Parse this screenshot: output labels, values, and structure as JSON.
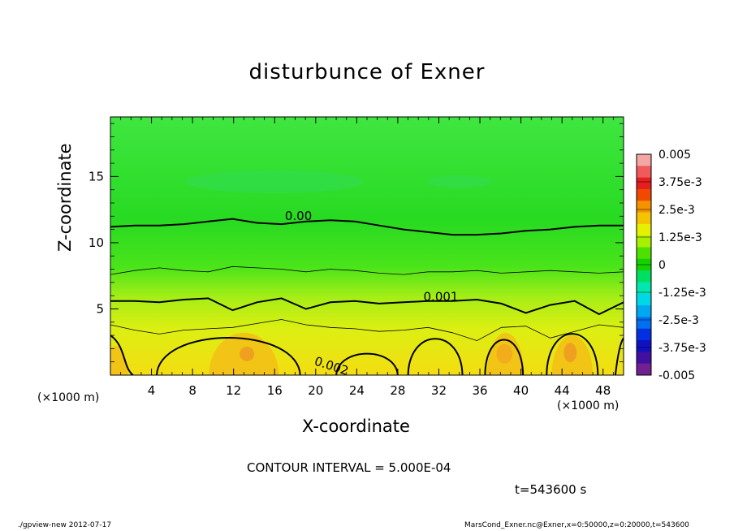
{
  "chart_data": {
    "type": "heatmap",
    "title": "disturbunce of Exner",
    "xlabel": "X-coordinate",
    "ylabel": "Z-coordinate",
    "x_unit_label_left": "(×1000 m)",
    "x_unit_label_right": "(×1000 m)",
    "xlim": [
      0,
      50
    ],
    "ylim": [
      0,
      19.5
    ],
    "x_ticks": [
      4,
      8,
      12,
      16,
      20,
      24,
      28,
      32,
      36,
      40,
      44,
      48
    ],
    "y_ticks": [
      5,
      10,
      15
    ],
    "contour_labels": [
      {
        "text": "0.00",
        "x": 17,
        "z": 11.7
      },
      {
        "text": "0.001",
        "x": 30.5,
        "z": 5.6
      },
      {
        "text": "0.002",
        "x": 19.8,
        "z": 0.8
      }
    ],
    "contour_levels": {
      "zero_line_z": [
        11.2,
        11.3,
        11.3,
        11.4,
        11.6,
        11.8,
        11.5,
        11.4,
        11.6,
        11.7,
        11.6,
        11.3,
        11.0,
        10.8,
        10.6,
        10.6,
        10.7,
        10.9,
        11.0,
        11.2,
        11.3,
        11.3
      ],
      "thin_0005_z": [
        7.6,
        7.9,
        8.1,
        7.9,
        7.8,
        8.2,
        8.1,
        8.0,
        7.8,
        8.0,
        7.9,
        7.7,
        7.6,
        7.8,
        7.8,
        7.9,
        7.7,
        7.8,
        7.9,
        7.8,
        7.7,
        7.8
      ],
      "thick_001_z": [
        5.6,
        5.6,
        5.5,
        5.7,
        5.8,
        4.9,
        5.5,
        5.8,
        5.0,
        5.5,
        5.6,
        5.4,
        5.5,
        5.6,
        5.6,
        5.7,
        5.4,
        4.7,
        5.3,
        5.6,
        4.6,
        5.5
      ],
      "thin_0015_z": [
        3.8,
        3.4,
        3.1,
        3.4,
        3.5,
        3.6,
        3.9,
        4.2,
        3.8,
        3.6,
        3.5,
        3.3,
        3.4,
        3.6,
        3.2,
        2.6,
        3.6,
        3.7,
        2.8,
        3.3,
        3.8,
        3.6
      ]
    },
    "colorbar": {
      "labels": [
        "0.005",
        "3.75e-3",
        "2.5e-3",
        "1.25e-3",
        "0",
        "-1.25e-3",
        "-2.5e-3",
        "-3.75e-3",
        "-0.005"
      ],
      "range": [
        -0.005,
        0.005
      ],
      "colors": [
        "#f4a6a6",
        "#f05a5a",
        "#e61e1e",
        "#f04a00",
        "#f59200",
        "#f5c400",
        "#e6f000",
        "#a8f000",
        "#4ee000",
        "#14d200",
        "#00e060",
        "#00e8b0",
        "#00d8e8",
        "#00a8f0",
        "#0070f0",
        "#0030e0",
        "#1010c0",
        "#4010a0",
        "#702090"
      ]
    },
    "grid": false
  },
  "annotations": {
    "contour_interval": "CONTOUR INTERVAL = 5.000E-04",
    "time": "t=543600 s"
  },
  "footer": {
    "left": "./gpview-new  2012-07-17",
    "right": "MarsCond_Exner.nc@Exner,x=0:50000,z=0:20000,t=543600"
  }
}
